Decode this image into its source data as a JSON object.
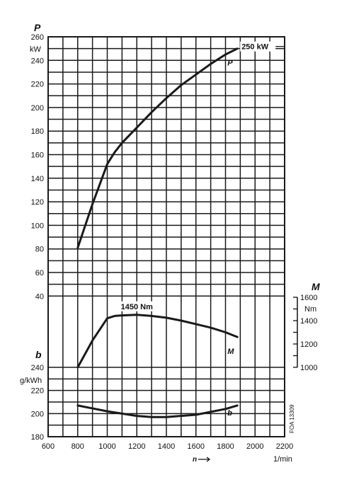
{
  "chart_data": {
    "type": "line",
    "x_ticks": [
      600,
      800,
      1000,
      1200,
      1400,
      1600,
      1800,
      2000,
      2200
    ],
    "x_unit": "1/min",
    "x_symbol": "n",
    "axes": {
      "power": {
        "symbol": "P",
        "unit": "kW",
        "ticks": [
          260,
          240,
          220,
          200,
          180,
          160,
          140,
          120,
          100,
          80,
          60,
          40
        ],
        "ylim": [
          40,
          260
        ]
      },
      "torque": {
        "symbol": "M",
        "unit": "Nm",
        "ticks": [
          1600,
          1400,
          1200,
          1000
        ],
        "ylim": [
          1000,
          1600
        ]
      },
      "consumption": {
        "symbol": "b",
        "unit": "g/kWh",
        "ticks": [
          240,
          220,
          200,
          180
        ],
        "ylim": [
          180,
          240
        ]
      }
    },
    "series": [
      {
        "name": "P",
        "axis": "power",
        "x": [
          800,
          900,
          1000,
          1050,
          1100,
          1200,
          1300,
          1400,
          1500,
          1600,
          1700,
          1800,
          1880
        ],
        "y": [
          81,
          118,
          152,
          162,
          170,
          183,
          196,
          208,
          219,
          228,
          237,
          245,
          250
        ]
      },
      {
        "name": "M",
        "axis": "torque",
        "x": [
          800,
          900,
          1000,
          1050,
          1100,
          1200,
          1300,
          1400,
          1500,
          1600,
          1700,
          1800,
          1880
        ],
        "y": [
          1000,
          1230,
          1420,
          1440,
          1445,
          1450,
          1440,
          1425,
          1400,
          1370,
          1340,
          1300,
          1260
        ]
      },
      {
        "name": "b",
        "axis": "consumption",
        "x": [
          800,
          1000,
          1200,
          1300,
          1400,
          1600,
          1800,
          1880
        ],
        "y": [
          207,
          202,
          198,
          197,
          197,
          199,
          204,
          207
        ]
      }
    ],
    "annotations": [
      {
        "text": "250 kW",
        "x": 1880,
        "y": 250,
        "axis": "power"
      },
      {
        "text": "1450 Nm",
        "x": 1200,
        "y": 1450,
        "axis": "torque"
      }
    ],
    "footnote": "FOA 13309",
    "grid": true
  }
}
